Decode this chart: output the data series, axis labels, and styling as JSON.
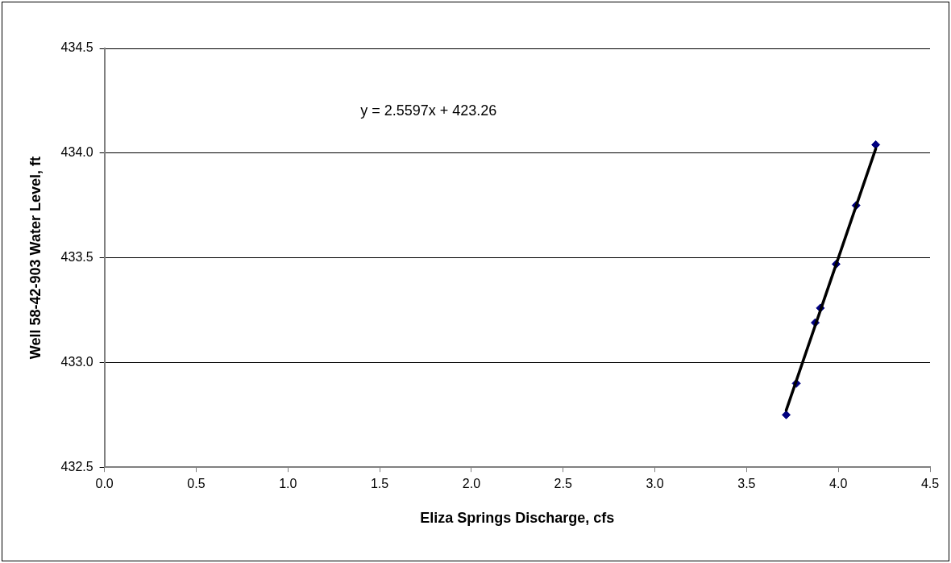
{
  "chart_data": {
    "type": "scatter",
    "xlabel": "Eliza Springs Discharge, cfs",
    "ylabel": "Well 58-42-903 Water Level, ft",
    "series": [
      {
        "type": "scatter",
        "color": "#000080",
        "marker": "diamond",
        "x": [
          3.716,
          3.771,
          3.874,
          3.902,
          3.988,
          4.097,
          4.204
        ],
        "values": [
          432.75,
          432.9,
          433.19,
          433.26,
          433.47,
          433.75,
          434.04
        ]
      },
      {
        "type": "line",
        "color": "#000000",
        "marker": "none",
        "x": [
          3.716,
          4.204
        ],
        "values": [
          432.772,
          434.021
        ]
      }
    ],
    "xlim": [
      0,
      4.5
    ],
    "xticks": [
      {
        "value": 0,
        "label": "0.0"
      },
      {
        "value": 0.5,
        "label": "0.5"
      },
      {
        "value": 1,
        "label": "1.0"
      },
      {
        "value": 1.5,
        "label": "1.5"
      },
      {
        "value": 2,
        "label": "2.0"
      },
      {
        "value": 2.5,
        "label": "2.5"
      },
      {
        "value": 3,
        "label": "3.0"
      },
      {
        "value": 3.5,
        "label": "3.5"
      },
      {
        "value": 4,
        "label": "4.0"
      },
      {
        "value": 4.5,
        "label": "4.5"
      }
    ],
    "ylim": [
      432.5,
      434.5
    ],
    "yticks": [
      432.5,
      {
        "value": 433,
        "label": "433.0"
      },
      433.5,
      {
        "value": 434,
        "label": "434.0"
      },
      434.5
    ],
    "annotations": [
      "y = 2.5597x + 423.26"
    ],
    "grid": "y",
    "legend": false,
    "line_style": "solid"
  }
}
